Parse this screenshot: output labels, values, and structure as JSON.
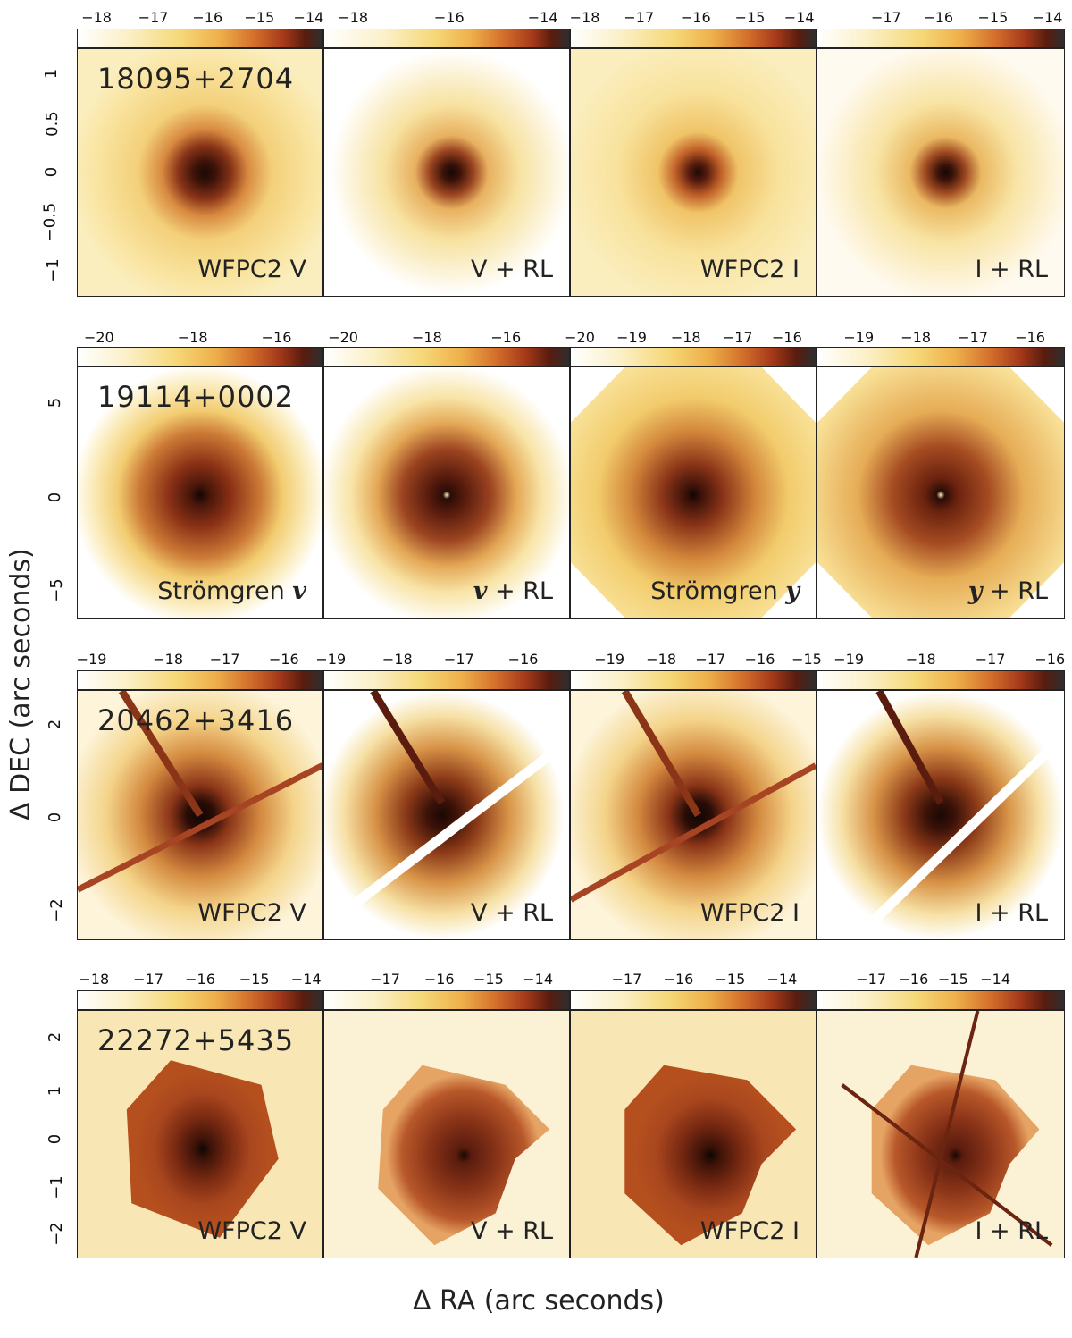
{
  "figure": {
    "y_axis_label": "Δ DEC (arc seconds)",
    "x_axis_label": "Δ RA (arc seconds)",
    "colormap": [
      "#ffffff",
      "#fbf0c8",
      "#f7dc7a",
      "#efb848",
      "#d87a30",
      "#b5451e",
      "#7a2412",
      "#3c1208",
      "#2a2a2a"
    ]
  },
  "rows": [
    {
      "object": "18095+2704",
      "yticks": [
        "1",
        "0.5",
        "0",
        "−0.5",
        "−1"
      ],
      "panels": [
        {
          "label": "WFPC2 V",
          "scale": [
            "−18",
            "−17",
            "−16",
            "−15",
            "−14"
          ]
        },
        {
          "label": "V + RL",
          "scale": [
            "−18",
            "−16",
            "−14"
          ]
        },
        {
          "label": "WFPC2 I",
          "scale": [
            "−18",
            "−17",
            "−16",
            "−15",
            "−14"
          ]
        },
        {
          "label": "I + RL",
          "scale": [
            "−17",
            "−16",
            "−15",
            "−14"
          ]
        }
      ]
    },
    {
      "object": "19114+0002",
      "yticks": [
        "5",
        "0",
        "−5"
      ],
      "panels": [
        {
          "label_text": "Strömgren",
          "label_sym": "v",
          "scale": [
            "−20",
            "−18",
            "−16"
          ]
        },
        {
          "label_sym_first": "v",
          "label_text": "+ RL",
          "scale": [
            "−20",
            "−18",
            "−16"
          ]
        },
        {
          "label_text": "Strömgren",
          "label_sym": "y",
          "scale": [
            "−20",
            "−19",
            "−18",
            "−17",
            "−16"
          ]
        },
        {
          "label_sym_first": "y",
          "label_text": "+ RL",
          "scale": [
            "−19",
            "−18",
            "−17",
            "−16"
          ]
        }
      ]
    },
    {
      "object": "20462+3416",
      "yticks": [
        "2",
        "0",
        "−2"
      ],
      "panels": [
        {
          "label": "WFPC2 V",
          "scale": [
            "−19",
            "−18",
            "−17",
            "−16"
          ]
        },
        {
          "label": "V + RL",
          "scale": [
            "−19",
            "−18",
            "−17",
            "−16"
          ]
        },
        {
          "label": "WFPC2 I",
          "scale": [
            "−19",
            "−18",
            "−17",
            "−16",
            "−15"
          ]
        },
        {
          "label": "I + RL",
          "scale": [
            "−19",
            "−18",
            "−17",
            "−16"
          ]
        }
      ]
    },
    {
      "object": "22272+5435",
      "yticks": [
        "2",
        "1",
        "0",
        "−1",
        "−2"
      ],
      "panels": [
        {
          "label": "WFPC2 V",
          "scale": [
            "−18",
            "−17",
            "−16",
            "−15",
            "−14"
          ]
        },
        {
          "label": "V + RL",
          "scale": [
            "−17",
            "−16",
            "−15",
            "−14"
          ]
        },
        {
          "label": "WFPC2 I",
          "scale": [
            "−17",
            "−16",
            "−15",
            "−14"
          ]
        },
        {
          "label": "I + RL",
          "scale": [
            "−17",
            "−16",
            "−15",
            "−14"
          ]
        }
      ]
    }
  ]
}
